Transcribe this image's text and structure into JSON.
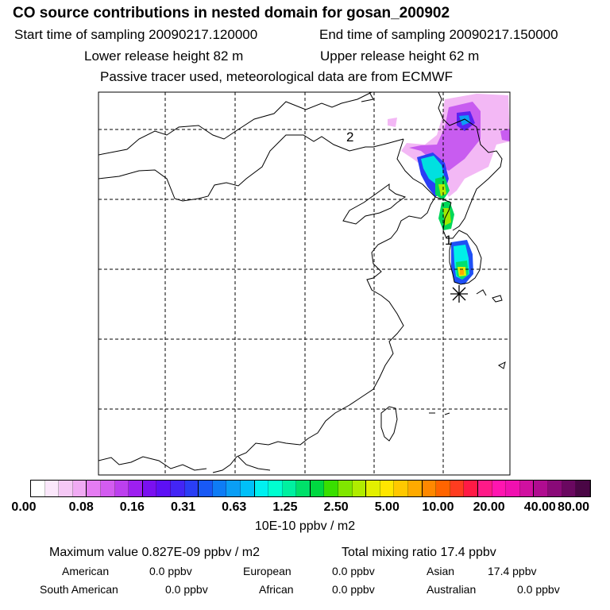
{
  "header": {
    "title": "CO  source contributions in nested domain for gosan_200902",
    "start_time": "Start time of sampling 20090217.120000",
    "end_time": "End time of sampling 20090217.150000",
    "lower_release": "Lower release height   82 m",
    "upper_release": "Upper release height   62 m",
    "tracer_info": "Passive tracer used, meteorological data are from ECMWF"
  },
  "map": {
    "markers": [
      {
        "label": "2"
      },
      {
        "label": "1"
      }
    ],
    "receptor_icon": "asterisk-icon"
  },
  "colorbar": {
    "colors": [
      "#ffffff",
      "#fbe7fb",
      "#f5c8f5",
      "#f0aaf3",
      "#e57cf2",
      "#d35cf0",
      "#bc3fee",
      "#9d1ff0",
      "#7a10f0",
      "#5d10f5",
      "#4325f5",
      "#2a3ef5",
      "#1859f5",
      "#0e7cf5",
      "#0a9ef5",
      "#00c0f8",
      "#00f0f0",
      "#00ffd0",
      "#00f0a0",
      "#00e06a",
      "#00d840",
      "#39df00",
      "#80e600",
      "#b0ec00",
      "#e3ef00",
      "#ffe600",
      "#ffc800",
      "#ffaa00",
      "#ff8800",
      "#ff6400",
      "#ff3c20",
      "#ff1a45",
      "#ff1a88",
      "#ff15b0",
      "#f010b0",
      "#d010a0",
      "#b00c90",
      "#8a0a78",
      "#6a0860",
      "#4a0645"
    ],
    "tick_labels": [
      "0.00",
      "0.08",
      "0.16",
      "0.31",
      "0.63",
      "1.25",
      "2.50",
      "5.00",
      "10.00",
      "20.00",
      "40.00",
      "80.00"
    ],
    "units": "10E-10 ppbv / m2"
  },
  "summary": {
    "max_value": "Maximum value  0.827E-09 ppbv / m2",
    "total_mixing": "Total mixing ratio       17.4 ppbv",
    "regions": [
      {
        "name": "American",
        "value": "0.0 ppbv"
      },
      {
        "name": "European",
        "value": "0.0 ppbv"
      },
      {
        "name": "Asian",
        "value": "17.4 ppbv"
      },
      {
        "name": "South American",
        "value": "0.0 ppbv"
      },
      {
        "name": "African",
        "value": "0.0 ppbv"
      },
      {
        "name": "Australian",
        "value": "0.0 ppbv"
      }
    ]
  }
}
